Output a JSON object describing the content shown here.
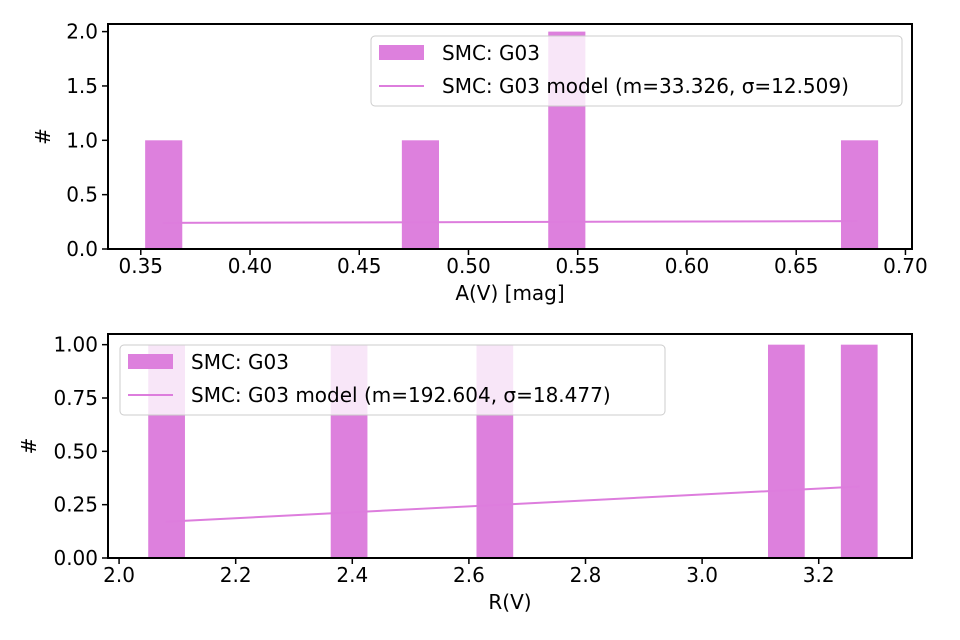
{
  "colors": {
    "bar": "#dd80dd",
    "line": "#dd7ddd"
  },
  "chart_data": [
    {
      "type": "bar",
      "xlabel": "A(V) [mag]",
      "ylabel": "#",
      "xlim": [
        0.335,
        0.703
      ],
      "ylim": [
        0,
        2.07
      ],
      "xticks": [
        0.35,
        0.4,
        0.45,
        0.5,
        0.55,
        0.6,
        0.65,
        0.7
      ],
      "xtick_labels": [
        "0.35",
        "0.40",
        "0.45",
        "0.50",
        "0.55",
        "0.60",
        "0.65",
        "0.70"
      ],
      "yticks": [
        0.0,
        0.5,
        1.0,
        1.5,
        2.0
      ],
      "ytick_labels": [
        "0.0",
        "0.5",
        "1.0",
        "1.5",
        "2.0"
      ],
      "legend_position": "top-right",
      "grid": false,
      "bars": [
        {
          "left": 0.352,
          "right": 0.369,
          "value": 1
        },
        {
          "left": 0.4695,
          "right": 0.4865,
          "value": 1
        },
        {
          "left": 0.5365,
          "right": 0.5535,
          "value": 2
        },
        {
          "left": 0.6705,
          "right": 0.6875,
          "value": 1
        }
      ],
      "model_line": {
        "x": [
          0.36,
          0.678
        ],
        "y": [
          0.24,
          0.257
        ]
      },
      "legend": {
        "hist": "SMC: G03",
        "model": "SMC: G03 model (m=33.326, σ=12.509)"
      }
    },
    {
      "type": "bar",
      "xlabel": "R(V)",
      "ylabel": "#",
      "xlim": [
        1.981,
        3.36
      ],
      "ylim": [
        0,
        1.05
      ],
      "xticks": [
        2.0,
        2.2,
        2.4,
        2.6,
        2.8,
        3.0,
        3.2
      ],
      "xtick_labels": [
        "2.0",
        "2.2",
        "2.4",
        "2.6",
        "2.8",
        "3.0",
        "3.2"
      ],
      "yticks": [
        0.0,
        0.25,
        0.5,
        0.75,
        1.0
      ],
      "ytick_labels": [
        "0.00",
        "0.25",
        "0.50",
        "0.75",
        "1.00"
      ],
      "legend_position": "top-left",
      "grid": false,
      "bars": [
        {
          "left": 2.05,
          "right": 2.113,
          "value": 1
        },
        {
          "left": 2.363,
          "right": 2.426,
          "value": 1
        },
        {
          "left": 2.613,
          "right": 2.676,
          "value": 1
        },
        {
          "left": 3.113,
          "right": 3.176,
          "value": 1
        },
        {
          "left": 3.238,
          "right": 3.301,
          "value": 1
        }
      ],
      "model_line": {
        "x": [
          2.08,
          3.27
        ],
        "y": [
          0.17,
          0.335
        ]
      },
      "legend": {
        "hist": "SMC: G03",
        "model": "SMC: G03 model (m=192.604, σ=18.477)"
      }
    }
  ]
}
